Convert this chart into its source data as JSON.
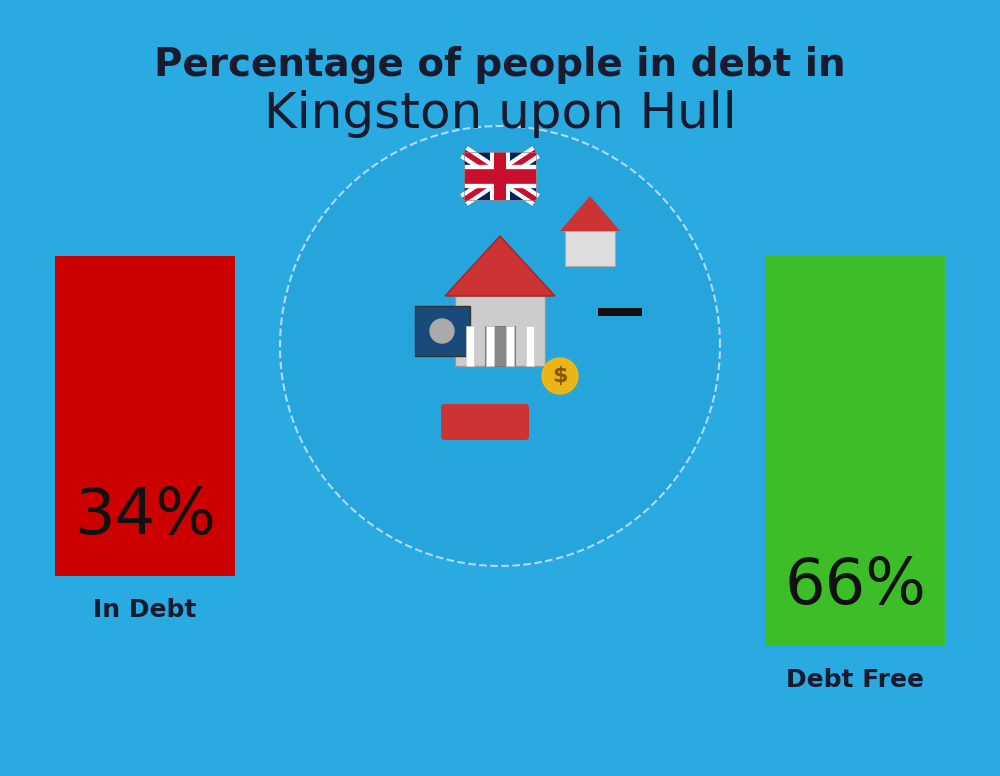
{
  "title_line1": "Percentage of people in debt in",
  "title_line2": "Kingston upon Hull",
  "background_color": "#29ABE2",
  "bar1_label": "34%",
  "bar1_color": "#CC0000",
  "bar1_category": "In Debt",
  "bar2_label": "66%",
  "bar2_color": "#3DBE29",
  "bar2_category": "Debt Free",
  "title_fontsize": 28,
  "subtitle_fontsize": 36,
  "bar_label_fontsize": 46,
  "category_fontsize": 18,
  "title_color": "#1a1a2e",
  "label_color": "#111111",
  "category_color": "#1a1a2e"
}
